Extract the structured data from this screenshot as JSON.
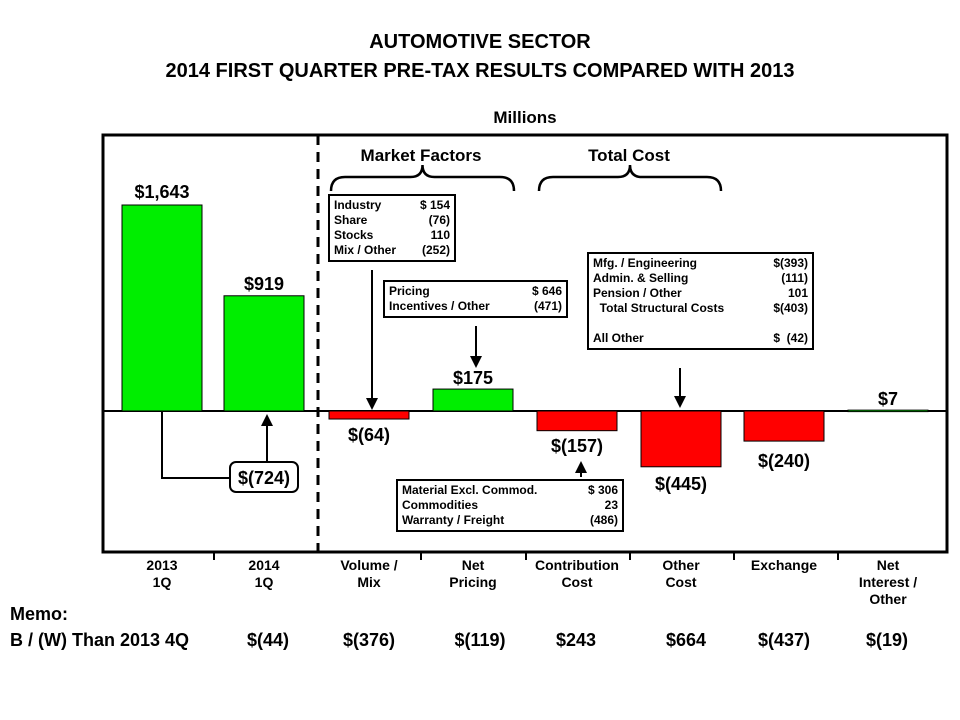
{
  "title_line1": "AUTOMOTIVE SECTOR",
  "title_line2": "2014 FIRST QUARTER PRE-TAX RESULTS COMPARED WITH 2013",
  "units_label": "Millions",
  "group_labels": {
    "market": "Market Factors",
    "cost": "Total Cost"
  },
  "chart_data": {
    "type": "bar",
    "subtype": "waterfall",
    "categories": [
      "2013\n1Q",
      "2014\n1Q",
      "Volume /\nMix",
      "Net\nPricing",
      "Contribution\nCost",
      "Other\nCost",
      "Exchange",
      "Net\nInterest /\nOther"
    ],
    "values": [
      1643,
      919,
      -64,
      175,
      -157,
      -445,
      -240,
      7
    ],
    "labels": [
      "$1,643",
      "$919",
      "$(64)",
      "$175",
      "$(157)",
      "$(445)",
      "$(240)",
      "$7"
    ],
    "colors": {
      "positive": "#00ee00",
      "negative": "#ff0000"
    },
    "difference_callout": "$(724)"
  },
  "memo": {
    "title": "Memo:",
    "row_label": "B / (W) Than 2013 4Q",
    "values": [
      "$(44)",
      "$(376)",
      "$(119)",
      "$243",
      "$664",
      "$(437)",
      "$(19)"
    ]
  },
  "boxes": {
    "volume": [
      [
        "Industry",
        "$ 154"
      ],
      [
        "Share",
        "(76)"
      ],
      [
        "Stocks",
        "110"
      ],
      [
        "Mix / Other",
        "(252)"
      ]
    ],
    "pricing": [
      [
        "Pricing",
        "$ 646"
      ],
      [
        "Incentives / Other",
        "(471)"
      ]
    ],
    "contribution": [
      [
        "Material Excl. Commod.",
        "$ 306"
      ],
      [
        "Commodities",
        "23"
      ],
      [
        "Warranty / Freight",
        "(486)"
      ]
    ],
    "other_cost": [
      [
        "Mfg. / Engineering",
        "$(393)"
      ],
      [
        "Admin. & Selling",
        "(111)"
      ],
      [
        "Pension / Other",
        "101"
      ],
      [
        "  Total Structural Costs",
        "$(403)"
      ],
      [
        "",
        ""
      ],
      [
        "All Other",
        "$  (42)"
      ]
    ]
  }
}
